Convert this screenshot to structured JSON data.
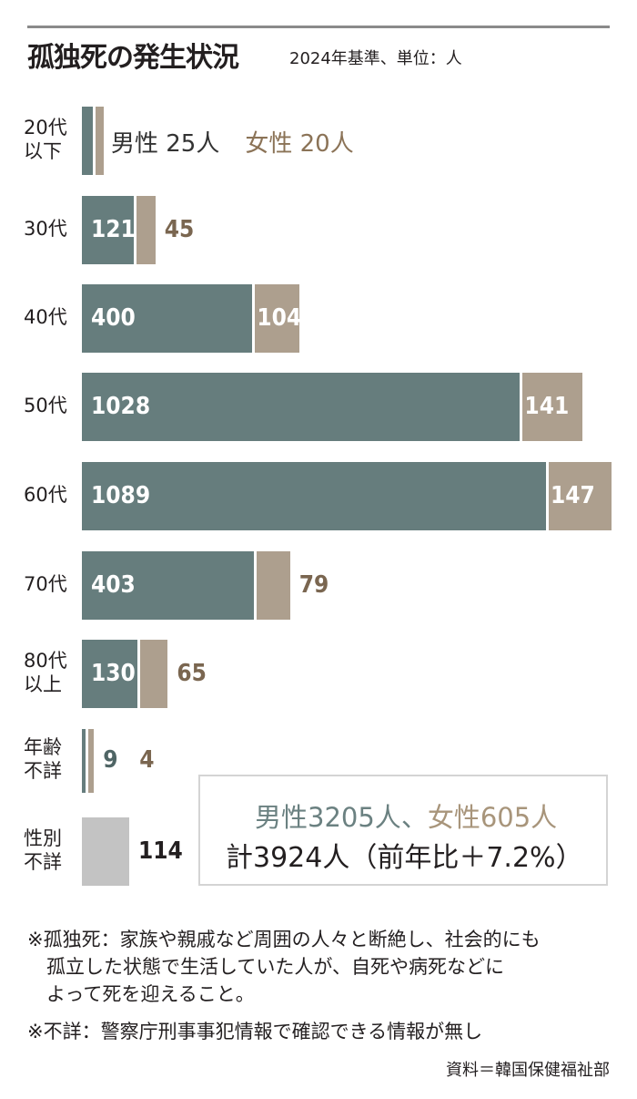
{
  "header": {
    "title": "孤独死の発生状況",
    "subtitle": "2024年基準、単位：人"
  },
  "legend": {
    "male": "男性 25人",
    "female": "女性 20人"
  },
  "colors": {
    "male": "#667d7d",
    "female": "#ad9f8e",
    "unknown": "#c3c3c3"
  },
  "chart_data": {
    "type": "bar",
    "orientation": "horizontal",
    "stacked": true,
    "categories": [
      "20代\n以下",
      "30代",
      "40代",
      "50代",
      "60代",
      "70代",
      "80代\n以上",
      "年齢\n不詳",
      "性別\n不詳"
    ],
    "series": [
      {
        "values": [
          25,
          121,
          400,
          1028,
          1089,
          403,
          130,
          9,
          0
        ]
      },
      {
        "values": [
          20,
          45,
          104,
          141,
          147,
          79,
          65,
          4,
          0
        ]
      },
      {
        "values": [
          0,
          0,
          0,
          0,
          0,
          0,
          0,
          0,
          114
        ]
      }
    ],
    "data_labels": [
      [
        "",
        "121",
        "400",
        "1028",
        "1089",
        "403",
        "130",
        "9",
        ""
      ],
      [
        "",
        "45",
        "104",
        "141",
        "147",
        "79",
        "65",
        "4",
        ""
      ],
      [
        "",
        "",
        "",
        "",
        "",
        "",
        "",
        "",
        "114"
      ]
    ]
  },
  "total": {
    "male": "男性3205人",
    "separator": "、",
    "female": "女性605人",
    "line2": "計3924人（前年比＋7.2%）"
  },
  "notes": {
    "note1": "※孤独死：家族や親戚など周囲の人々と断絶し、社会的にも\n　孤立した状態で生活していた人が、自死や病死などに\n　よって死を迎えること。",
    "note2": "※不詳：警察庁刑事事犯情報で確認できる情報が無し"
  },
  "source": "資料＝韓国保健福祉部"
}
